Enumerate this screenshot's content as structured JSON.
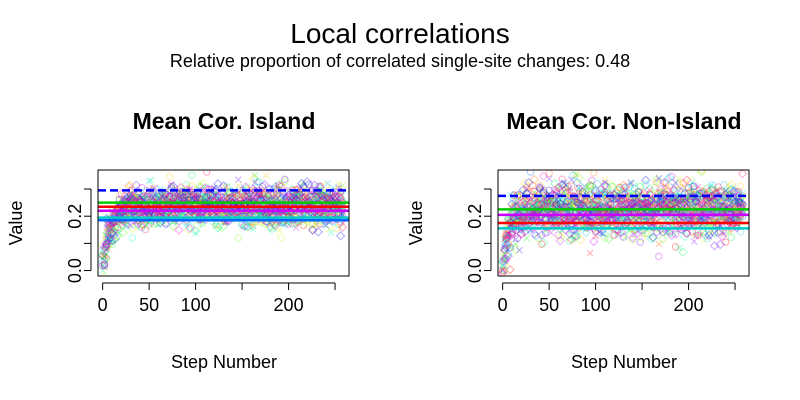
{
  "figure": {
    "title": "Local correlations",
    "subtitle": "Relative proportion of correlated single-site changes: 0.48"
  },
  "palette": [
    "#ff0000",
    "#ff6600",
    "#ffcc00",
    "#ccff00",
    "#66ff00",
    "#00ff00",
    "#00ff66",
    "#00ffcc",
    "#00ccff",
    "#0066ff",
    "#0000ff",
    "#6600ff",
    "#cc00ff",
    "#ff00cc",
    "#ff0066"
  ],
  "chart_data": [
    {
      "type": "scatter",
      "title": "Mean Cor. Island",
      "xlabel": "Step Number",
      "ylabel": "Value",
      "xlim": [
        -5,
        265
      ],
      "ylim": [
        -0.02,
        0.37
      ],
      "xticks": [
        0,
        50,
        100,
        200
      ],
      "xtick_minor": [
        150,
        250
      ],
      "yticks": [
        0.0,
        0.2
      ],
      "ytick_minor": [
        0.1,
        0.3
      ],
      "n_steps": 260,
      "series_count": 15,
      "plateau": 0.24,
      "spread": 0.035,
      "rise_rate": 0.12,
      "reference_lines": [
        {
          "value": 0.295,
          "color": "#0000ff"
        },
        {
          "value": 0.25,
          "color": "#00cc00"
        },
        {
          "value": 0.235,
          "color": "#ff0000"
        },
        {
          "value": 0.22,
          "color": "#cc00ff"
        },
        {
          "value": 0.195,
          "color": "#00cccc"
        },
        {
          "value": 0.185,
          "color": "#0066ff"
        }
      ],
      "grid": false,
      "legend": "none"
    },
    {
      "type": "scatter",
      "title": "Mean Cor. Non-Island",
      "xlabel": "Step Number",
      "ylabel": "Value",
      "xlim": [
        -5,
        265
      ],
      "ylim": [
        -0.02,
        0.37
      ],
      "xticks": [
        0,
        50,
        100,
        200
      ],
      "xtick_minor": [
        150,
        250
      ],
      "yticks": [
        0.0,
        0.2
      ],
      "ytick_minor": [
        0.1,
        0.3
      ],
      "n_steps": 260,
      "series_count": 15,
      "plateau": 0.225,
      "spread": 0.045,
      "rise_rate": 0.14,
      "reference_lines": [
        {
          "value": 0.275,
          "color": "#0000ff"
        },
        {
          "value": 0.225,
          "color": "#00cc00"
        },
        {
          "value": 0.205,
          "color": "#cc00ff"
        },
        {
          "value": 0.175,
          "color": "#ff0000"
        },
        {
          "value": 0.155,
          "color": "#00cccc"
        }
      ],
      "grid": false,
      "legend": "none"
    }
  ]
}
